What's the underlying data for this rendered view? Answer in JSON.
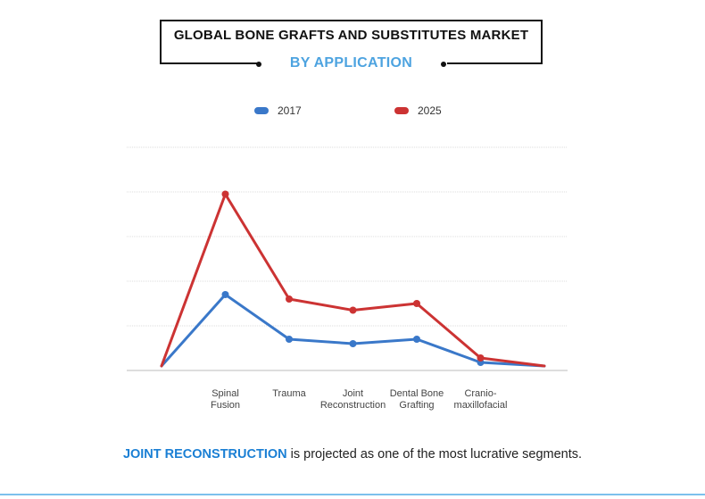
{
  "header": {
    "title": "GLOBAL BONE GRAFTS AND SUBSTITUTES MARKET",
    "subtitle": "BY APPLICATION"
  },
  "colors": {
    "s2017": "#3a78c9",
    "s2025": "#cc3333",
    "accent": "#4da3e0"
  },
  "chart_data": {
    "type": "line",
    "title": "GLOBAL BONE GRAFTS AND SUBSTITUTES MARKET",
    "subtitle": "BY APPLICATION",
    "categories": [
      "Spinal Fusion",
      "Trauma",
      "Joint Reconstruction",
      "Dental Bone Grafting",
      "Cranio-maxillofacial"
    ],
    "category_label_lines": [
      [
        "Spinal",
        "Fusion"
      ],
      [
        "Trauma"
      ],
      [
        "Joint",
        "Reconstruction"
      ],
      [
        "Dental Bone",
        "Grafting"
      ],
      [
        "Cranio-",
        "maxillofacial"
      ]
    ],
    "x": [
      0,
      1,
      2,
      3,
      4,
      5,
      6
    ],
    "series": [
      {
        "name": "2017",
        "values": [
          0.1,
          1.7,
          0.7,
          0.6,
          0.7,
          0.18,
          0.1
        ],
        "marker_indices": [
          1,
          2,
          3,
          4,
          5
        ]
      },
      {
        "name": "2025",
        "values": [
          0.1,
          3.95,
          1.6,
          1.35,
          1.5,
          0.28,
          0.1
        ],
        "marker_indices": [
          1,
          2,
          3,
          4,
          5
        ]
      }
    ],
    "ylim": [
      0,
      5
    ],
    "yticks": [
      0,
      1,
      2,
      3,
      4,
      5
    ],
    "grid": true,
    "y_tick_labels_shown": false,
    "legend": "top-center",
    "xlabel": "",
    "ylabel": ""
  },
  "footer": {
    "highlight": "JOINT RECONSTRUCTION",
    "text": " is projected as one of the most lucrative segments."
  }
}
